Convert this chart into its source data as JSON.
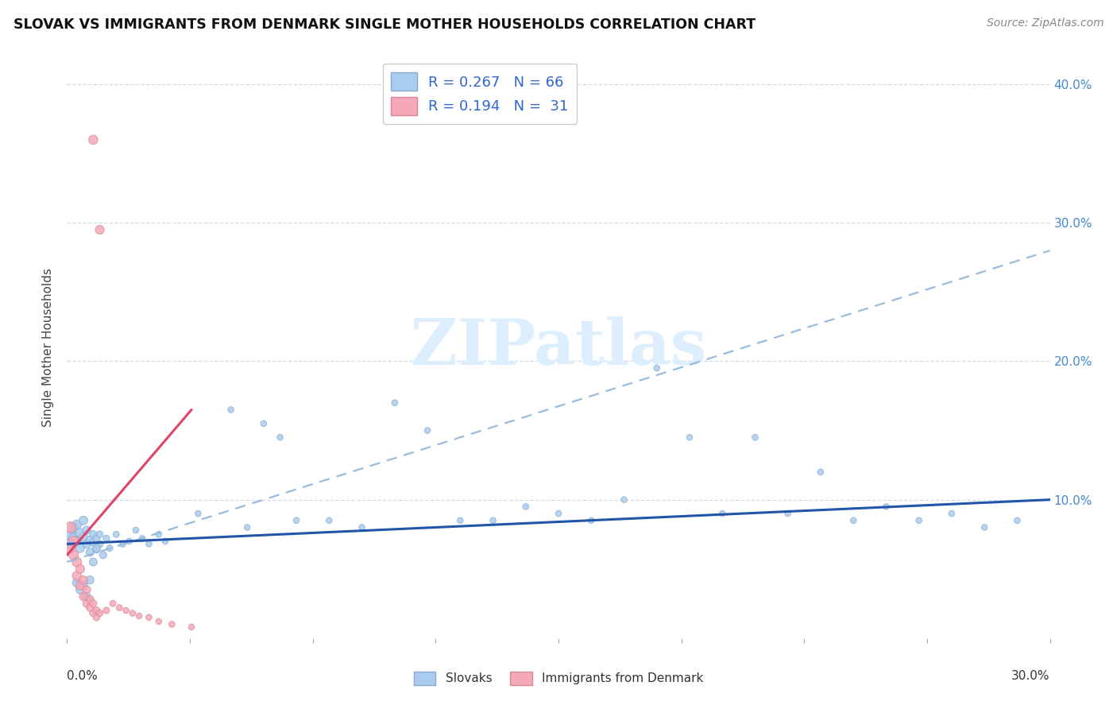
{
  "title": "SLOVAK VS IMMIGRANTS FROM DENMARK SINGLE MOTHER HOUSEHOLDS CORRELATION CHART",
  "source": "Source: ZipAtlas.com",
  "ylabel": "Single Mother Households",
  "xlim": [
    0.0,
    0.3
  ],
  "ylim": [
    0.0,
    0.42
  ],
  "yticks": [
    0.0,
    0.1,
    0.2,
    0.3,
    0.4
  ],
  "ytick_labels": [
    "",
    "10.0%",
    "20.0%",
    "30.0%",
    "40.0%"
  ],
  "blue_color": "#aaccee",
  "blue_edge": "#88aad0",
  "pink_color": "#f4a8b8",
  "pink_edge": "#d88898",
  "blue_line_color": "#2255aa",
  "pink_line_color": "#dd4466",
  "dash_color": "#99bbdd",
  "grid_color": "#ccdde8",
  "watermark_color": "#ddeeff",
  "blue_trend_x0": 0.0,
  "blue_trend_y0": 0.068,
  "blue_trend_x1": 0.3,
  "blue_trend_y1": 0.1,
  "pink_trend_x0": 0.0,
  "pink_trend_y0": 0.06,
  "pink_trend_x1": 0.038,
  "pink_trend_y1": 0.165,
  "dash_trend_x0": 0.0,
  "dash_trend_y0": 0.055,
  "dash_trend_x1": 0.3,
  "dash_trend_y1": 0.28,
  "slovaks_x": [
    0.001,
    0.001,
    0.002,
    0.002,
    0.003,
    0.003,
    0.004,
    0.004,
    0.005,
    0.005,
    0.006,
    0.006,
    0.007,
    0.007,
    0.008,
    0.008,
    0.009,
    0.009,
    0.01,
    0.01,
    0.012,
    0.013,
    0.015,
    0.017,
    0.019,
    0.021,
    0.023,
    0.025,
    0.028,
    0.03,
    0.04,
    0.05,
    0.055,
    0.06,
    0.065,
    0.07,
    0.08,
    0.09,
    0.1,
    0.11,
    0.12,
    0.13,
    0.14,
    0.15,
    0.16,
    0.17,
    0.18,
    0.19,
    0.2,
    0.21,
    0.22,
    0.23,
    0.24,
    0.25,
    0.26,
    0.27,
    0.28,
    0.29,
    0.003,
    0.004,
    0.005,
    0.006,
    0.007,
    0.008,
    0.009,
    0.011
  ],
  "slovaks_y": [
    0.075,
    0.068,
    0.072,
    0.08,
    0.07,
    0.082,
    0.076,
    0.065,
    0.085,
    0.073,
    0.068,
    0.078,
    0.062,
    0.071,
    0.069,
    0.075,
    0.064,
    0.072,
    0.068,
    0.075,
    0.072,
    0.065,
    0.075,
    0.068,
    0.07,
    0.078,
    0.072,
    0.068,
    0.075,
    0.07,
    0.09,
    0.165,
    0.08,
    0.155,
    0.145,
    0.085,
    0.085,
    0.08,
    0.17,
    0.15,
    0.085,
    0.085,
    0.095,
    0.09,
    0.085,
    0.1,
    0.195,
    0.145,
    0.09,
    0.145,
    0.09,
    0.12,
    0.085,
    0.095,
    0.085,
    0.09,
    0.08,
    0.085,
    0.04,
    0.035,
    0.038,
    0.03,
    0.042,
    0.055,
    0.065,
    0.06
  ],
  "slovaks_size": [
    100,
    90,
    85,
    80,
    75,
    70,
    68,
    65,
    62,
    60,
    58,
    55,
    52,
    50,
    48,
    46,
    44,
    42,
    40,
    38,
    36,
    34,
    32,
    32,
    30,
    30,
    30,
    30,
    30,
    30,
    30,
    30,
    30,
    30,
    30,
    30,
    30,
    30,
    30,
    30,
    30,
    30,
    30,
    30,
    30,
    30,
    30,
    30,
    30,
    30,
    30,
    30,
    30,
    30,
    30,
    30,
    30,
    30,
    65,
    62,
    60,
    58,
    55,
    52,
    50,
    45
  ],
  "denmark_x": [
    0.001,
    0.001,
    0.002,
    0.002,
    0.003,
    0.003,
    0.004,
    0.004,
    0.005,
    0.005,
    0.006,
    0.006,
    0.007,
    0.007,
    0.008,
    0.008,
    0.009,
    0.009,
    0.01,
    0.012,
    0.014,
    0.016,
    0.018,
    0.02,
    0.022,
    0.025,
    0.028,
    0.032,
    0.038,
    0.008,
    0.01
  ],
  "denmark_y": [
    0.08,
    0.065,
    0.07,
    0.06,
    0.055,
    0.045,
    0.05,
    0.038,
    0.042,
    0.03,
    0.035,
    0.025,
    0.028,
    0.022,
    0.025,
    0.018,
    0.02,
    0.015,
    0.018,
    0.02,
    0.025,
    0.022,
    0.02,
    0.018,
    0.016,
    0.015,
    0.012,
    0.01,
    0.008,
    0.36,
    0.295
  ],
  "denmark_size": [
    100,
    90,
    85,
    80,
    75,
    70,
    65,
    62,
    58,
    55,
    52,
    50,
    48,
    46,
    44,
    42,
    40,
    38,
    36,
    34,
    32,
    32,
    30,
    30,
    30,
    30,
    30,
    30,
    30,
    70,
    65
  ]
}
